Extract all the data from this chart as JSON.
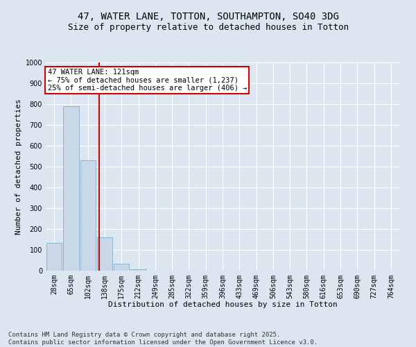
{
  "title_line1": "47, WATER LANE, TOTTON, SOUTHAMPTON, SO40 3DG",
  "title_line2": "Size of property relative to detached houses in Totton",
  "xlabel": "Distribution of detached houses by size in Totton",
  "ylabel": "Number of detached properties",
  "bar_labels": [
    "28sqm",
    "65sqm",
    "102sqm",
    "138sqm",
    "175sqm",
    "212sqm",
    "249sqm",
    "285sqm",
    "322sqm",
    "359sqm",
    "396sqm",
    "433sqm",
    "469sqm",
    "506sqm",
    "543sqm",
    "580sqm",
    "616sqm",
    "653sqm",
    "690sqm",
    "727sqm",
    "764sqm"
  ],
  "bar_values": [
    135,
    790,
    530,
    160,
    35,
    8,
    0,
    0,
    0,
    0,
    0,
    0,
    0,
    0,
    0,
    0,
    0,
    0,
    0,
    0,
    0
  ],
  "bar_color": "#c8d8e8",
  "bar_edgecolor": "#8ab4cc",
  "vline_x": 2.68,
  "vline_color": "#cc0000",
  "annotation_text": "47 WATER LANE: 121sqm\n← 75% of detached houses are smaller (1,237)\n25% of semi-detached houses are larger (406) →",
  "annotation_box_edgecolor": "#cc0000",
  "annotation_box_facecolor": "#ffffff",
  "ylim": [
    0,
    1000
  ],
  "yticks": [
    0,
    100,
    200,
    300,
    400,
    500,
    600,
    700,
    800,
    900,
    1000
  ],
  "bg_color": "#dce6f0",
  "plot_bg_color": "#dce6f0",
  "footer_text": "Contains HM Land Registry data © Crown copyright and database right 2025.\nContains public sector information licensed under the Open Government Licence v3.0.",
  "title_fontsize": 10,
  "subtitle_fontsize": 9,
  "axis_label_fontsize": 8,
  "tick_fontsize": 7,
  "annotation_fontsize": 7.5,
  "footer_fontsize": 6.5
}
